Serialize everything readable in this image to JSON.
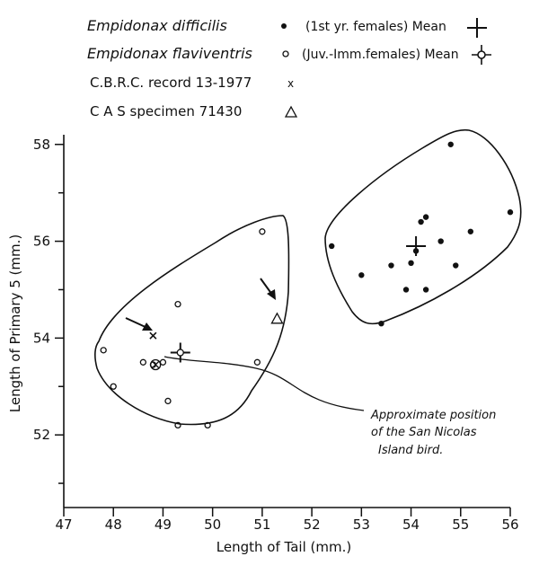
{
  "chart_data": {
    "type": "scatter",
    "xlabel": "Length of Tail (mm.)",
    "ylabel": "Length of Primary 5 (mm.)",
    "xlim": [
      47,
      56
    ],
    "ylim": [
      50.5,
      58.2
    ],
    "xticks": [
      47,
      48,
      49,
      50,
      51,
      52,
      53,
      54,
      55,
      56
    ],
    "yticks": [
      52,
      54,
      56,
      58
    ],
    "legend": [
      {
        "species": "Empidonax difficilis",
        "marker": "filled-circle",
        "note": "(1st yr. females) Mean"
      },
      {
        "species": "Empidonax flaviventris",
        "marker": "open-circle",
        "note": "(Juv.-Imm.females) Mean"
      },
      {
        "label": "C.B.R.C. record 13-1977",
        "marker": "x"
      },
      {
        "label": "C A S specimen 71430",
        "marker": "triangle"
      }
    ],
    "series": [
      {
        "name": "Empidonax difficilis",
        "marker": "filled-circle",
        "points": [
          [
            54.8,
            58.0
          ],
          [
            56.0,
            56.6
          ],
          [
            55.2,
            56.2
          ],
          [
            54.3,
            56.5
          ],
          [
            54.2,
            56.4
          ],
          [
            54.6,
            56.0
          ],
          [
            52.4,
            55.9
          ],
          [
            54.1,
            55.8
          ],
          [
            54.0,
            55.55
          ],
          [
            53.6,
            55.5
          ],
          [
            53.0,
            55.3
          ],
          [
            54.9,
            55.5
          ],
          [
            53.9,
            55.0
          ],
          [
            54.3,
            55.0
          ],
          [
            53.4,
            54.3
          ]
        ],
        "mean": [
          54.1,
          55.9
        ]
      },
      {
        "name": "Empidonax flaviventris",
        "marker": "open-circle",
        "points": [
          [
            51.0,
            56.2
          ],
          [
            49.3,
            54.7
          ],
          [
            47.8,
            53.75
          ],
          [
            48.6,
            53.5
          ],
          [
            48.8,
            53.45
          ],
          [
            49.0,
            53.5
          ],
          [
            50.9,
            53.5
          ],
          [
            48.0,
            53.0
          ],
          [
            49.1,
            52.7
          ],
          [
            49.3,
            52.2
          ],
          [
            49.9,
            52.2
          ]
        ],
        "mean": [
          49.35,
          53.7
        ]
      },
      {
        "name": "C.B.R.C. record 13-1977",
        "marker": "x",
        "points": [
          [
            48.8,
            54.05
          ]
        ]
      },
      {
        "name": "C A S specimen 71430",
        "marker": "triangle",
        "points": [
          [
            51.3,
            54.4
          ]
        ]
      }
    ],
    "annotation": "Approximate position of the San Nicolas Island bird",
    "annotation_lines": [
      "Approximate position",
      "of the San Nicolas",
      "Island bird."
    ],
    "san_nicolas_point": [
      48.85,
      53.45
    ]
  }
}
